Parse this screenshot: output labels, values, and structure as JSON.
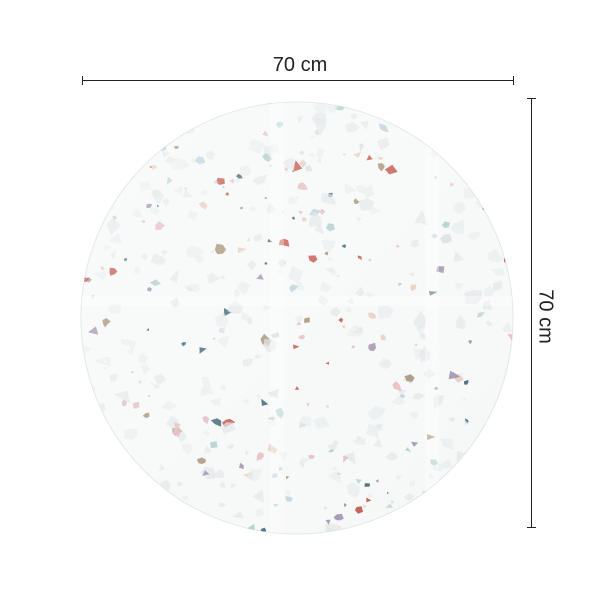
{
  "product": {
    "shape": "round",
    "pattern": "terrazzo",
    "chip_colors": [
      "#c0463a",
      "#2f5a6a",
      "#a9c9c9",
      "#e3b7bd",
      "#a08a6c",
      "#9b8aa8",
      "#d9dde0",
      "#b9cfd8",
      "#e8c9b8"
    ],
    "background_color": "#f6f8f8"
  },
  "dimensions": {
    "width_label": "70 cm",
    "height_label": "70 cm"
  }
}
